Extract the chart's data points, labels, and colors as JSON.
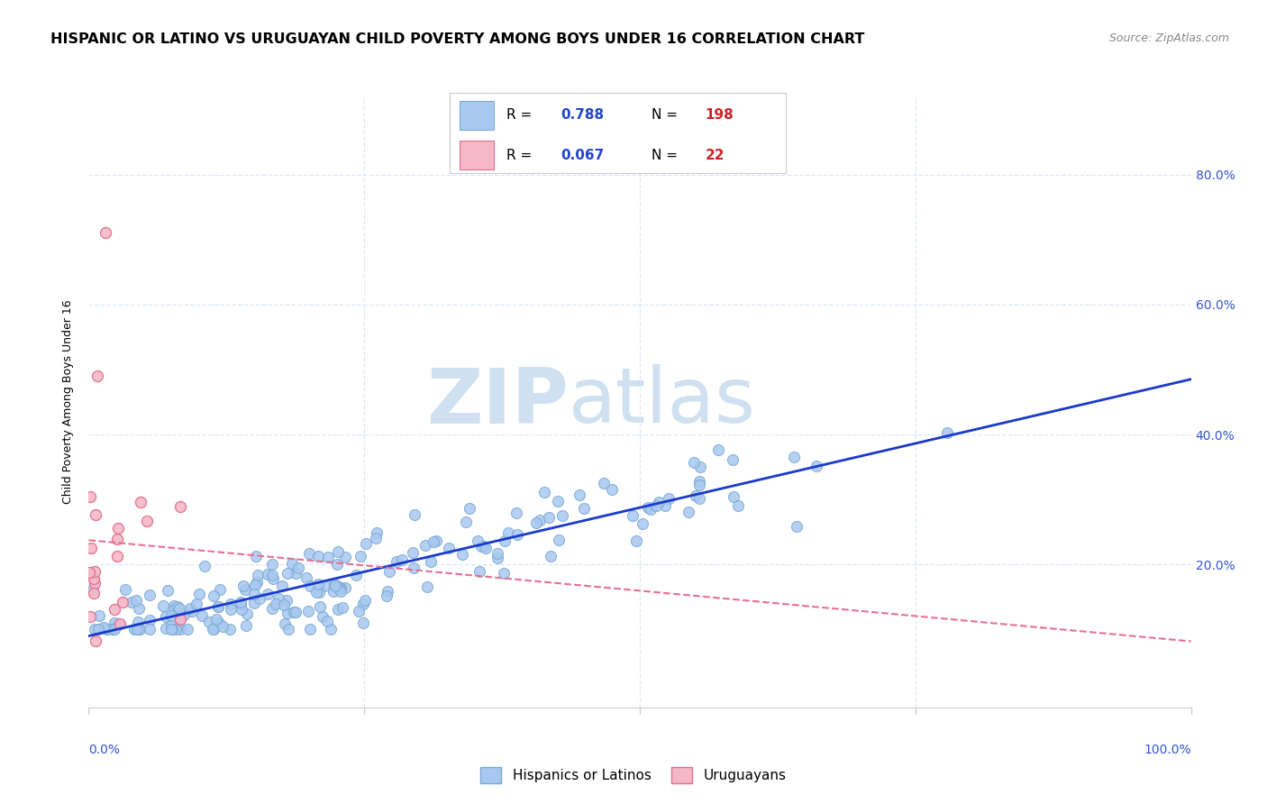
{
  "title": "HISPANIC OR LATINO VS URUGUAYAN CHILD POVERTY AMONG BOYS UNDER 16 CORRELATION CHART",
  "source": "Source: ZipAtlas.com",
  "ylabel": "Child Poverty Among Boys Under 16",
  "legend_label1": "Hispanics or Latinos",
  "legend_label2": "Uruguayans",
  "R1": 0.788,
  "N1": 198,
  "R2": 0.067,
  "N2": 22,
  "scatter1_color": "#a8c8f0",
  "scatter1_edge": "#7aaad0",
  "scatter2_color": "#f5b8c8",
  "scatter2_edge": "#e07090",
  "line1_color": "#1a3acc",
  "line2_color": "#e87090",
  "watermark_zip": "ZIP",
  "watermark_atlas": "atlas",
  "watermark_color": "#cfe0f0",
  "title_fontsize": 11.5,
  "source_fontsize": 9,
  "axis_label_fontsize": 9,
  "tick_fontsize": 10,
  "legend_fontsize": 11,
  "rnval_fontsize": 12,
  "background_color": "#ffffff",
  "grid_color": "#dce8f5",
  "tick_color": "#3355cc",
  "xlim": [
    0.0,
    1.0
  ],
  "ylim": [
    -0.02,
    0.92
  ]
}
